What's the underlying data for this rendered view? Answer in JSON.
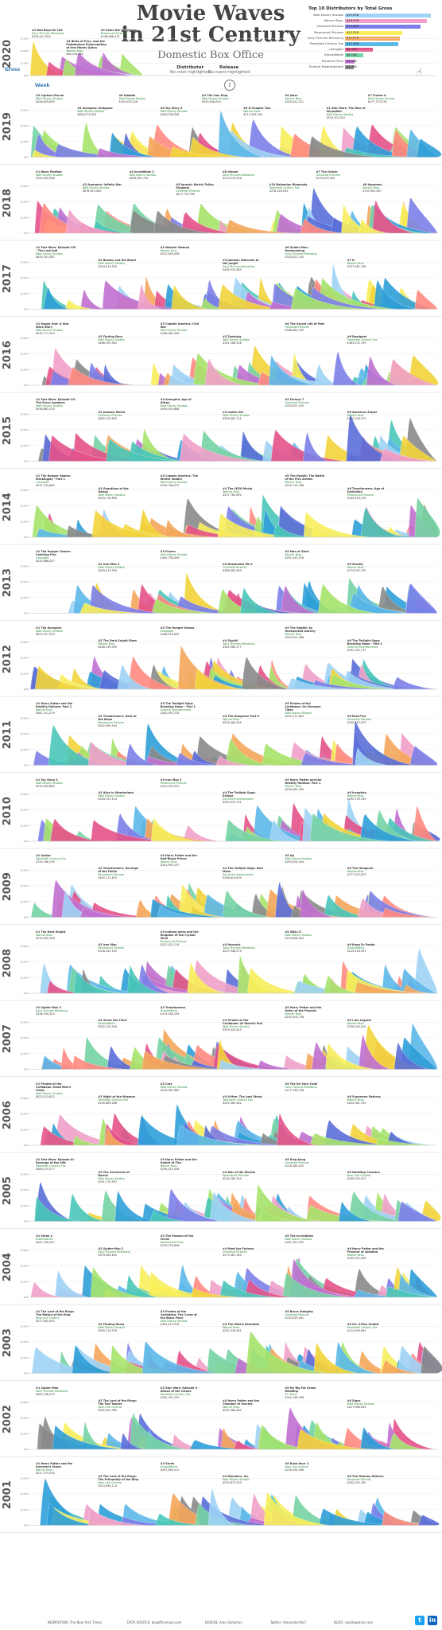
{
  "header": {
    "title_line1": "Movie Waves",
    "title_line2": "in 21st Century",
    "subtitle": "Domestic Box Office",
    "toggle_distributor": "Distributor",
    "toggle_distributor_sub": "No color highlighted",
    "toggle_release": "Release",
    "toggle_release_sub": "No event highlighted",
    "info_icon": "i",
    "gross_label": "Gross",
    "week_label": "Week"
  },
  "legend": {
    "title": "Top 10 Distributors by Total Gross",
    "items": [
      {
        "name": "Walt Disney Studios",
        "value": "$19.99B",
        "share": 1.0,
        "color": "#9fd3f5"
      },
      {
        "name": "Warner Bros.",
        "value": "$18.97B",
        "share": 0.95,
        "color": "#f0a1c8"
      },
      {
        "name": "Universal Pictures",
        "value": "$17.66B",
        "share": 0.88,
        "color": "#7c7fe8"
      },
      {
        "name": "Paramount Pictures",
        "value": "$13.35B",
        "share": 0.67,
        "color": "#f7ee5a"
      },
      {
        "name": "Sony Pictures Releasing",
        "value": "$12.81B",
        "share": 0.64,
        "color": "#f5a65b"
      },
      {
        "name": "Twentieth Century Fox",
        "value": "$12.46B",
        "share": 0.62,
        "color": "#5cb8e8"
      },
      {
        "name": "Lionsgate",
        "value": "$6.39B",
        "share": 0.32,
        "color": "#e4528a"
      },
      {
        "name": "DreamWorks",
        "value": "$4.15B",
        "share": 0.21,
        "color": "#75d3a4"
      },
      {
        "name": "Miramax Films",
        "value": "$2.10B",
        "share": 0.11,
        "color": "#c070d0"
      },
      {
        "name": "Summit Entertainment",
        "value": "$2.09B",
        "share": 0.1,
        "color": "#8a8a8a"
      }
    ]
  },
  "years": [
    "2020",
    "2019",
    "2018",
    "2017",
    "2016",
    "2015",
    "2014",
    "2013",
    "2012",
    "2011",
    "2010",
    "2009",
    "2008",
    "2007",
    "2006",
    "2005",
    "2004",
    "2003",
    "2002",
    "2001"
  ],
  "y_ticks": [
    "$300M",
    "$200M",
    "$100M",
    "$0M"
  ],
  "palette": [
    "#9fd3f5",
    "#f0a1c8",
    "#7c7fe8",
    "#f7ee5a",
    "#f5a65b",
    "#5cb8e8",
    "#e4528a",
    "#75d3a4",
    "#c070d0",
    "#8a8a8a",
    "#49c6b8",
    "#f2d43a",
    "#5a6ed8",
    "#ff8a80",
    "#a6e36b",
    "#2f9fd8"
  ],
  "annotations": {
    "2020": [
      {
        "t": "#1 Bad Boys for Life",
        "d": "Sony Pictures Releasing",
        "g": "$204,417,855"
      },
      {
        "t": "#3 Birds of Prey: And the Fantabulous Emancipation of One Harley Quinn",
        "d": "Warner Bros.",
        "g": "$84,158,461"
      },
      {
        "t": "#2 Sonic the Hedgehog",
        "d": "Paramount Pictures",
        "g": "$146,066,470"
      }
    ],
    "2019": [
      {
        "t": "#3 Captain Marvel",
        "d": "Walt Disney Studios",
        "g": "$426,829,839"
      },
      {
        "t": "#5 Avengers: Endgame",
        "d": "Walt Disney Studios",
        "g": "$858,373,000"
      },
      {
        "t": "#6 Aladdin",
        "d": "Walt Disney Studios",
        "g": "$355,559,216"
      },
      {
        "t": "#4 Toy Story 4",
        "d": "Walt Disney Studios",
        "g": "$434,038,008"
      },
      {
        "t": "#2 The Lion King",
        "d": "Walt Disney Studios",
        "g": "$543,638,043"
      },
      {
        "t": "#8 It Chapter Two",
        "d": "Warner Bros.",
        "g": "$211,593,228"
      },
      {
        "t": "#9 Joker",
        "d": "Warner Bros.",
        "g": "$335,451,311"
      },
      {
        "t": "#1 Star Wars: The Rise of Skywalker",
        "d": "Walt Disney Studios",
        "g": "$515,202,542"
      },
      {
        "t": "#7 Frozen II",
        "d": "Walt Disney Studios",
        "g": "$477,373,578"
      }
    ],
    "2018": [
      {
        "t": "#1 Black Panther",
        "d": "Walt Disney Studios",
        "g": "$700,059,566"
      },
      {
        "t": "#2 Avengers: Infinity War",
        "d": "Walt Disney Studios",
        "g": "$678,815,482"
      },
      {
        "t": "#4 Incredibles 2",
        "d": "Walt Disney Studios",
        "g": "$608,581,744"
      },
      {
        "t": "#5 Jurassic World: Fallen Kingdom",
        "d": "Universal Pictures",
        "g": "$417,719,760"
      },
      {
        "t": "#8 Venom",
        "d": "Sony Pictures Releasing",
        "g": "$213,515,506"
      },
      {
        "t": "#10 Bohemian Rhapsody",
        "d": "Twentieth Century Fox",
        "g": "$216,428,042"
      },
      {
        "t": "#7 The Grinch",
        "d": "Universal Pictures",
        "g": "$270,620,950"
      },
      {
        "t": "#6 Aquaman",
        "d": "Warner Bros.",
        "g": "$335,061,807"
      }
    ],
    "2017": [
      {
        "t": "#1 Star Wars: Episode VIII - The Last Jedi",
        "d": "Walt Disney Studios",
        "g": "$620,181,382"
      },
      {
        "t": "#2 Beauty and the Beast",
        "d": "Walt Disney Studios",
        "g": "$504,014,165"
      },
      {
        "t": "#3 Wonder Woman",
        "d": "Warner Bros.",
        "g": "$412,563,408"
      },
      {
        "t": "#4 Jumanji: Welcome to the Jungle",
        "d": "Sony Pictures Releasing",
        "g": "$404,515,480"
      },
      {
        "t": "#6 Spider-Man: Homecoming",
        "d": "Sony Pictures Releasing",
        "g": "$334,201,140"
      },
      {
        "t": "#7 It",
        "d": "Warner Bros.",
        "g": "$327,481,748"
      }
    ],
    "2016": [
      {
        "t": "#1 Rogue One: A Star Wars Story",
        "d": "Walt Disney Studios",
        "g": "$532,177,324"
      },
      {
        "t": "#2 Finding Dory",
        "d": "Walt Disney Studios",
        "g": "$486,295,561"
      },
      {
        "t": "#3 Captain America: Civil War",
        "d": "Walt Disney Studios",
        "g": "$408,084,349"
      },
      {
        "t": "#5 Zootopia",
        "d": "Walt Disney Studios",
        "g": "$341,268,248"
      },
      {
        "t": "#4 The Secret Life of Pets",
        "d": "Universal Pictures",
        "g": "$368,384,330"
      },
      {
        "t": "#6 Deadpool",
        "d": "Twentieth Century Fox",
        "g": "$363,070,709"
      }
    ],
    "2015": [
      {
        "t": "#1 Star Wars: Episode VII - The Force Awakens",
        "d": "Walt Disney Studios",
        "g": "$936,662,225"
      },
      {
        "t": "#2 Jurassic World",
        "d": "Universal Pictures",
        "g": "$652,270,625"
      },
      {
        "t": "#3 Avengers: Age of Ultron",
        "d": "Walt Disney Studios",
        "g": "$459,005,868"
      },
      {
        "t": "#4 Inside Out",
        "d": "Walt Disney Studios",
        "g": "$356,461,711"
      },
      {
        "t": "#5 Furious 7",
        "d": "Universal Pictures",
        "g": "$353,007,020"
      },
      {
        "t": "#6 American Sniper",
        "d": "Warner Bros.",
        "g": "$350,126,372"
      }
    ],
    "2014": [
      {
        "t": "#1 The Hunger Games: Mockingjay - Part 1",
        "d": "Lionsgate",
        "g": "$337,135,885"
      },
      {
        "t": "#2 Guardians of the Galaxy",
        "d": "Walt Disney Studios",
        "g": "$333,176,600"
      },
      {
        "t": "#3 Captain America: The Winter Soldier",
        "d": "Walt Disney Studios",
        "g": "$259,766,572"
      },
      {
        "t": "#4 The LEGO Movie",
        "d": "Warner Bros.",
        "g": "$257,760,692"
      },
      {
        "t": "#5 The Hobbit: The Battle of the Five Armies",
        "d": "Warner Bros.",
        "g": "$255,119,788"
      },
      {
        "t": "#6 Transformers: Age of Extinction",
        "d": "Paramount Pictures",
        "g": "$245,439,076"
      }
    ],
    "2013": [
      {
        "t": "#1 The Hunger Games: Catching Fire",
        "d": "Lionsgate",
        "g": "$424,668,047"
      },
      {
        "t": "#2 Iron Man 3",
        "d": "Walt Disney Studios",
        "g": "$409,013,994"
      },
      {
        "t": "#3 Frozen",
        "d": "Walt Disney Studios",
        "g": "$400,738,009"
      },
      {
        "t": "#4 Despicable Me 2",
        "d": "Universal Pictures",
        "g": "$368,065,385"
      },
      {
        "t": "#5 Man of Steel",
        "d": "Warner Bros.",
        "g": "$291,045,518"
      },
      {
        "t": "#6 Gravity",
        "d": "Warner Bros.",
        "g": "$274,092,705"
      }
    ],
    "2012": [
      {
        "t": "#1 The Avengers",
        "d": "Walt Disney Studios",
        "g": "$623,357,910"
      },
      {
        "t": "#2 The Dark Knight Rises",
        "d": "Warner Bros.",
        "g": "$448,139,099"
      },
      {
        "t": "#3 The Hunger Games",
        "d": "Lionsgate",
        "g": "$408,010,692"
      },
      {
        "t": "#4 Skyfall",
        "d": "Sony Pictures Releasing",
        "g": "$304,360,277"
      },
      {
        "t": "#5 The Hobbit: An Unexpected Journey",
        "d": "Warner Bros.",
        "g": "$303,003,568"
      },
      {
        "t": "#6 The Twilight Saga: Breaking Dawn - Part 2",
        "d": "Summit Entertainment",
        "g": "$292,324,737"
      }
    ],
    "2011": [
      {
        "t": "#1 Harry Potter and the Deathly Hallows: Part 2",
        "d": "Warner Bros.",
        "g": "$381,011,219"
      },
      {
        "t": "#2 Transformers: Dark of the Moon",
        "d": "Paramount Pictures",
        "g": "$352,390,543"
      },
      {
        "t": "#3 The Twilight Saga: Breaking Dawn - Part 1",
        "d": "Summit Entertainment",
        "g": "$281,287,133"
      },
      {
        "t": "#4 The Hangover Part II",
        "d": "Warner Bros.",
        "g": "$254,464,305"
      },
      {
        "t": "#5 Pirates of the Caribbean: On Stranger Tides",
        "d": "Walt Disney Studios",
        "g": "$241,071,802"
      },
      {
        "t": "#6 Fast Five",
        "d": "Universal Pictures",
        "g": "$209,837,675"
      }
    ],
    "2010": [
      {
        "t": "#1 Toy Story 3",
        "d": "Walt Disney Studios",
        "g": "$415,004,880"
      },
      {
        "t": "#2 Alice in Wonderland",
        "d": "Walt Disney Studios",
        "g": "$334,191,110"
      },
      {
        "t": "#3 Iron Man 2",
        "d": "Paramount Pictures",
        "g": "$312,433,331"
      },
      {
        "t": "#4 The Twilight Saga: Eclipse",
        "d": "Summit Entertainment",
        "g": "$300,531,751"
      },
      {
        "t": "#5 Harry Potter and the Deathly Hallows: Part 1",
        "d": "Warner Bros.",
        "g": "$295,983,305"
      },
      {
        "t": "#6 Inception",
        "d": "Warner Bros.",
        "g": "$292,576,195"
      }
    ],
    "2009": [
      {
        "t": "#1 Avatar",
        "d": "Twentieth Century Fox",
        "g": "$749,766,139"
      },
      {
        "t": "#2 Transformers: Revenge of the Fallen",
        "d": "Paramount Pictures",
        "g": "$402,111,870"
      },
      {
        "t": "#3 Harry Potter and the Half-Blood Prince",
        "d": "Warner Bros.",
        "g": "$301,959,197"
      },
      {
        "t": "#4 The Twilight Saga: New Moon",
        "d": "Summit Entertainment",
        "g": "$296,623,634"
      },
      {
        "t": "#5 Up",
        "d": "Walt Disney Studios",
        "g": "$293,004,164"
      },
      {
        "t": "#6 The Hangover",
        "d": "Warner Bros.",
        "g": "$277,322,503"
      }
    ],
    "2008": [
      {
        "t": "#1 The Dark Knight",
        "d": "Warner Bros.",
        "g": "$533,345,358"
      },
      {
        "t": "#2 Iron Man",
        "d": "Paramount Pictures",
        "g": "$318,412,101"
      },
      {
        "t": "#3 Indiana Jones and the Kingdom of the Crystal Skull",
        "d": "Paramount Pictures",
        "g": "$317,101,119"
      },
      {
        "t": "#4 Hancock",
        "d": "Sony Pictures Releasing",
        "g": "$227,946,274"
      },
      {
        "t": "#5 WALL·E",
        "d": "Walt Disney Studios",
        "g": "$223,808,164"
      },
      {
        "t": "#6 Kung Fu Panda",
        "d": "DreamWorks",
        "g": "$215,434,591"
      }
    ],
    "2007": [
      {
        "t": "#1 Spider-Man 3",
        "d": "Sony Pictures Releasing",
        "g": "$336,530,303"
      },
      {
        "t": "#2 Shrek the Third",
        "d": "DreamWorks",
        "g": "$322,719,944"
      },
      {
        "t": "#3 Transformers",
        "d": "DreamWorks",
        "g": "$319,246,193"
      },
      {
        "t": "#4 Pirates of the Caribbean: At World's End",
        "d": "Walt Disney Studios",
        "g": "$309,420,425"
      },
      {
        "t": "#5 Harry Potter and the Order of the Phoenix",
        "d": "Warner Bros.",
        "g": "$292,004,738"
      },
      {
        "t": "#6 I Am Legend",
        "d": "Warner Bros.",
        "g": "$256,393,010"
      }
    ],
    "2006": [
      {
        "t": "#1 Pirates of the Caribbean: Dead Man's Chest",
        "d": "Walt Disney Studios",
        "g": "$423,315,812"
      },
      {
        "t": "#2 Night at the Museum",
        "d": "Twentieth Century Fox",
        "g": "$250,863,268"
      },
      {
        "t": "#3 Cars",
        "d": "Walt Disney Studios",
        "g": "$244,082,982"
      },
      {
        "t": "#4 X-Men: The Last Stand",
        "d": "Twentieth Century Fox",
        "g": "$234,362,462"
      },
      {
        "t": "#5 The Da Vinci Code",
        "d": "Sony Pictures Releasing",
        "g": "$217,536,138"
      },
      {
        "t": "#6 Superman Returns",
        "d": "Warner Bros.",
        "g": "$200,081,192"
      }
    ],
    "2005": [
      {
        "t": "#1 Star Wars: Episode III - Revenge of the Sith",
        "d": "Twentieth Century Fox",
        "g": "$380,270,577"
      },
      {
        "t": "#2 The Chronicles of Narnia",
        "d": "Walt Disney Studios",
        "g": "$291,710,957"
      },
      {
        "t": "#3 Harry Potter and the Goblet of Fire",
        "d": "Warner Bros.",
        "g": "$290,013,036"
      },
      {
        "t": "#4 War of the Worlds",
        "d": "Paramount Pictures",
        "g": "$234,280,354"
      },
      {
        "t": "#5 King Kong",
        "d": "Universal Pictures",
        "g": "$218,080,025"
      },
      {
        "t": "#6 Wedding Crashers",
        "d": "New Line Cinema",
        "g": "$209,255,921"
      }
    ],
    "2004": [
      {
        "t": "#1 Shrek 2",
        "d": "DreamWorks",
        "g": "$441,226,247"
      },
      {
        "t": "#2 Spider-Man 2",
        "d": "Sony Pictures Releasing",
        "g": "$373,585,825"
      },
      {
        "t": "#3 The Passion of the Christ",
        "d": "Newmarket Films",
        "g": "$370,274,604"
      },
      {
        "t": "#4 Meet the Fockers",
        "d": "Universal Pictures",
        "g": "$279,261,160"
      },
      {
        "t": "#5 The Incredibles",
        "d": "Walt Disney Studios",
        "g": "$261,441,092"
      },
      {
        "t": "#6 Harry Potter and the Prisoner of Azkaban",
        "d": "Warner Bros.",
        "g": "$249,541,069"
      }
    ],
    "2003": [
      {
        "t": "#1 The Lord of the Rings: The Return of the King",
        "d": "New Line Cinema",
        "g": "$377,845,905"
      },
      {
        "t": "#2 Finding Nemo",
        "d": "Walt Disney Studios",
        "g": "$339,714,978"
      },
      {
        "t": "#3 Pirates of the Caribbean: The Curse of the Black Pearl",
        "d": "Walt Disney Studios",
        "g": "$305,413,918"
      },
      {
        "t": "#4 The Matrix Reloaded",
        "d": "Warner Bros.",
        "g": "$281,576,461"
      },
      {
        "t": "#5 Bruce Almighty",
        "d": "Universal Pictures",
        "g": "$242,829,261"
      },
      {
        "t": "#6 X2: X-Men United",
        "d": "Twentieth Century Fox",
        "g": "$214,949,694"
      }
    ],
    "2002": [
      {
        "t": "#1 Spider-Man",
        "d": "Sony Pictures Releasing",
        "g": "$403,706,375"
      },
      {
        "t": "#2 The Lord of the Rings: The Two Towers",
        "d": "New Line Cinema",
        "g": "$342,551,365"
      },
      {
        "t": "#3 Star Wars: Episode II - Attack of the Clones",
        "d": "Twentieth Century Fox",
        "g": "$302,191,252"
      },
      {
        "t": "#4 Harry Potter and the Chamber of Secrets",
        "d": "Warner Bros.",
        "g": "$261,988,482"
      },
      {
        "t": "#5 My Big Fat Greek Wedding",
        "d": "IFC Films",
        "g": "$241,438,208"
      },
      {
        "t": "#6 Signs",
        "d": "Walt Disney Studios",
        "g": "$227,966,634"
      }
    ],
    "2001": [
      {
        "t": "#1 Harry Potter and the Sorcerer's Stone",
        "d": "Warner Bros.",
        "g": "$317,575,550"
      },
      {
        "t": "#2 The Lord of the Rings: The Fellowship of the Ring",
        "d": "New Line Cinema",
        "g": "$313,364,114"
      },
      {
        "t": "#3 Shrek",
        "d": "DreamWorks",
        "g": "$267,665,011"
      },
      {
        "t": "#4 Monsters, Inc.",
        "d": "Walt Disney Studios",
        "g": "$255,873,250"
      },
      {
        "t": "#5 Rush Hour 2",
        "d": "New Line Cinema",
        "g": "$226,164,286"
      },
      {
        "t": "#6 The Mummy Returns",
        "d": "Universal Pictures",
        "g": "$202,019,785"
      }
    ]
  },
  "chart_data": {
    "type": "area",
    "title": "Movie Waves in 21st Century",
    "subtitle": "Domestic Box Office",
    "xlabel": "Week",
    "ylabel": "Gross",
    "ylim": [
      0,
      300000000
    ],
    "y_ticks": [
      "$300M",
      "$200M",
      "$100M",
      "$0M"
    ],
    "series_per_year": "streamgraph of weekly domestic gross per film",
    "years": [
      "2020",
      "2019",
      "2018",
      "2017",
      "2016",
      "2015",
      "2014",
      "2013",
      "2012",
      "2011",
      "2010",
      "2009",
      "2008",
      "2007",
      "2006",
      "2005",
      "2004",
      "2003",
      "2002",
      "2001"
    ]
  },
  "footer": {
    "inspiration": "INSPIRATION: The New York Times",
    "data_source": "DATA SOURCE: boxofficemojo.com",
    "design": "DESIGN: Alex Varlamov",
    "twitter": "Twitter: AlexanderVar1",
    "blog": "BLOG: vizallowance.com",
    "twitter_icon": "twitter-icon",
    "linkedin_icon": "linkedin-icon"
  }
}
